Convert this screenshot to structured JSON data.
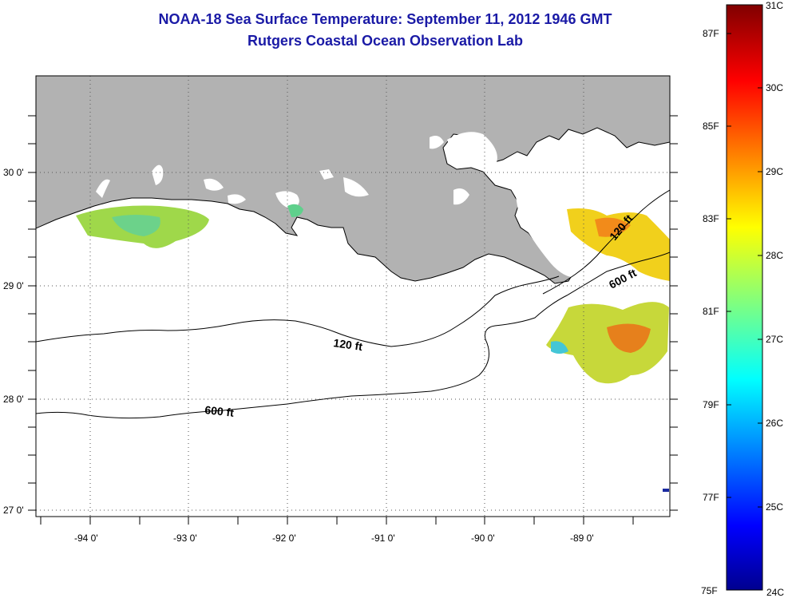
{
  "header": {
    "title": "NOAA-18 Sea Surface Temperature:  September 11, 2012 1946 GMT",
    "subtitle": "Rutgers Coastal Ocean Observation Lab"
  },
  "map": {
    "lat_labels": [
      "30 0'",
      "29 0'",
      "28 0'",
      "27 0'"
    ],
    "lon_labels": [
      "-94 0'",
      "-93 0'",
      "-92 0'",
      "-91 0'",
      "-90 0'",
      "-89 0'"
    ],
    "lon_range": [
      -94.55,
      -88.25
    ],
    "lat_range": [
      26.95,
      30.85
    ],
    "contours": [
      {
        "label": "120 ft",
        "text": "120 ft"
      },
      {
        "label": "600 ft",
        "text": "600 ft"
      },
      {
        "label": "120 ft",
        "text": "120 ft"
      },
      {
        "label": "600 ft",
        "text": "600 ft"
      }
    ],
    "colors": {
      "land": "#b2b2b2",
      "ocean": "#ffffff",
      "contour": "#000000"
    }
  },
  "colorbar": {
    "fahrenheit_labels": [
      "87F",
      "85F",
      "83F",
      "81F",
      "79F",
      "77F",
      "75F"
    ],
    "celsius_labels": [
      "31C",
      "30C",
      "29C",
      "28C",
      "27C",
      "26C",
      "25C",
      "24C"
    ],
    "range_c": [
      24,
      31
    ]
  }
}
